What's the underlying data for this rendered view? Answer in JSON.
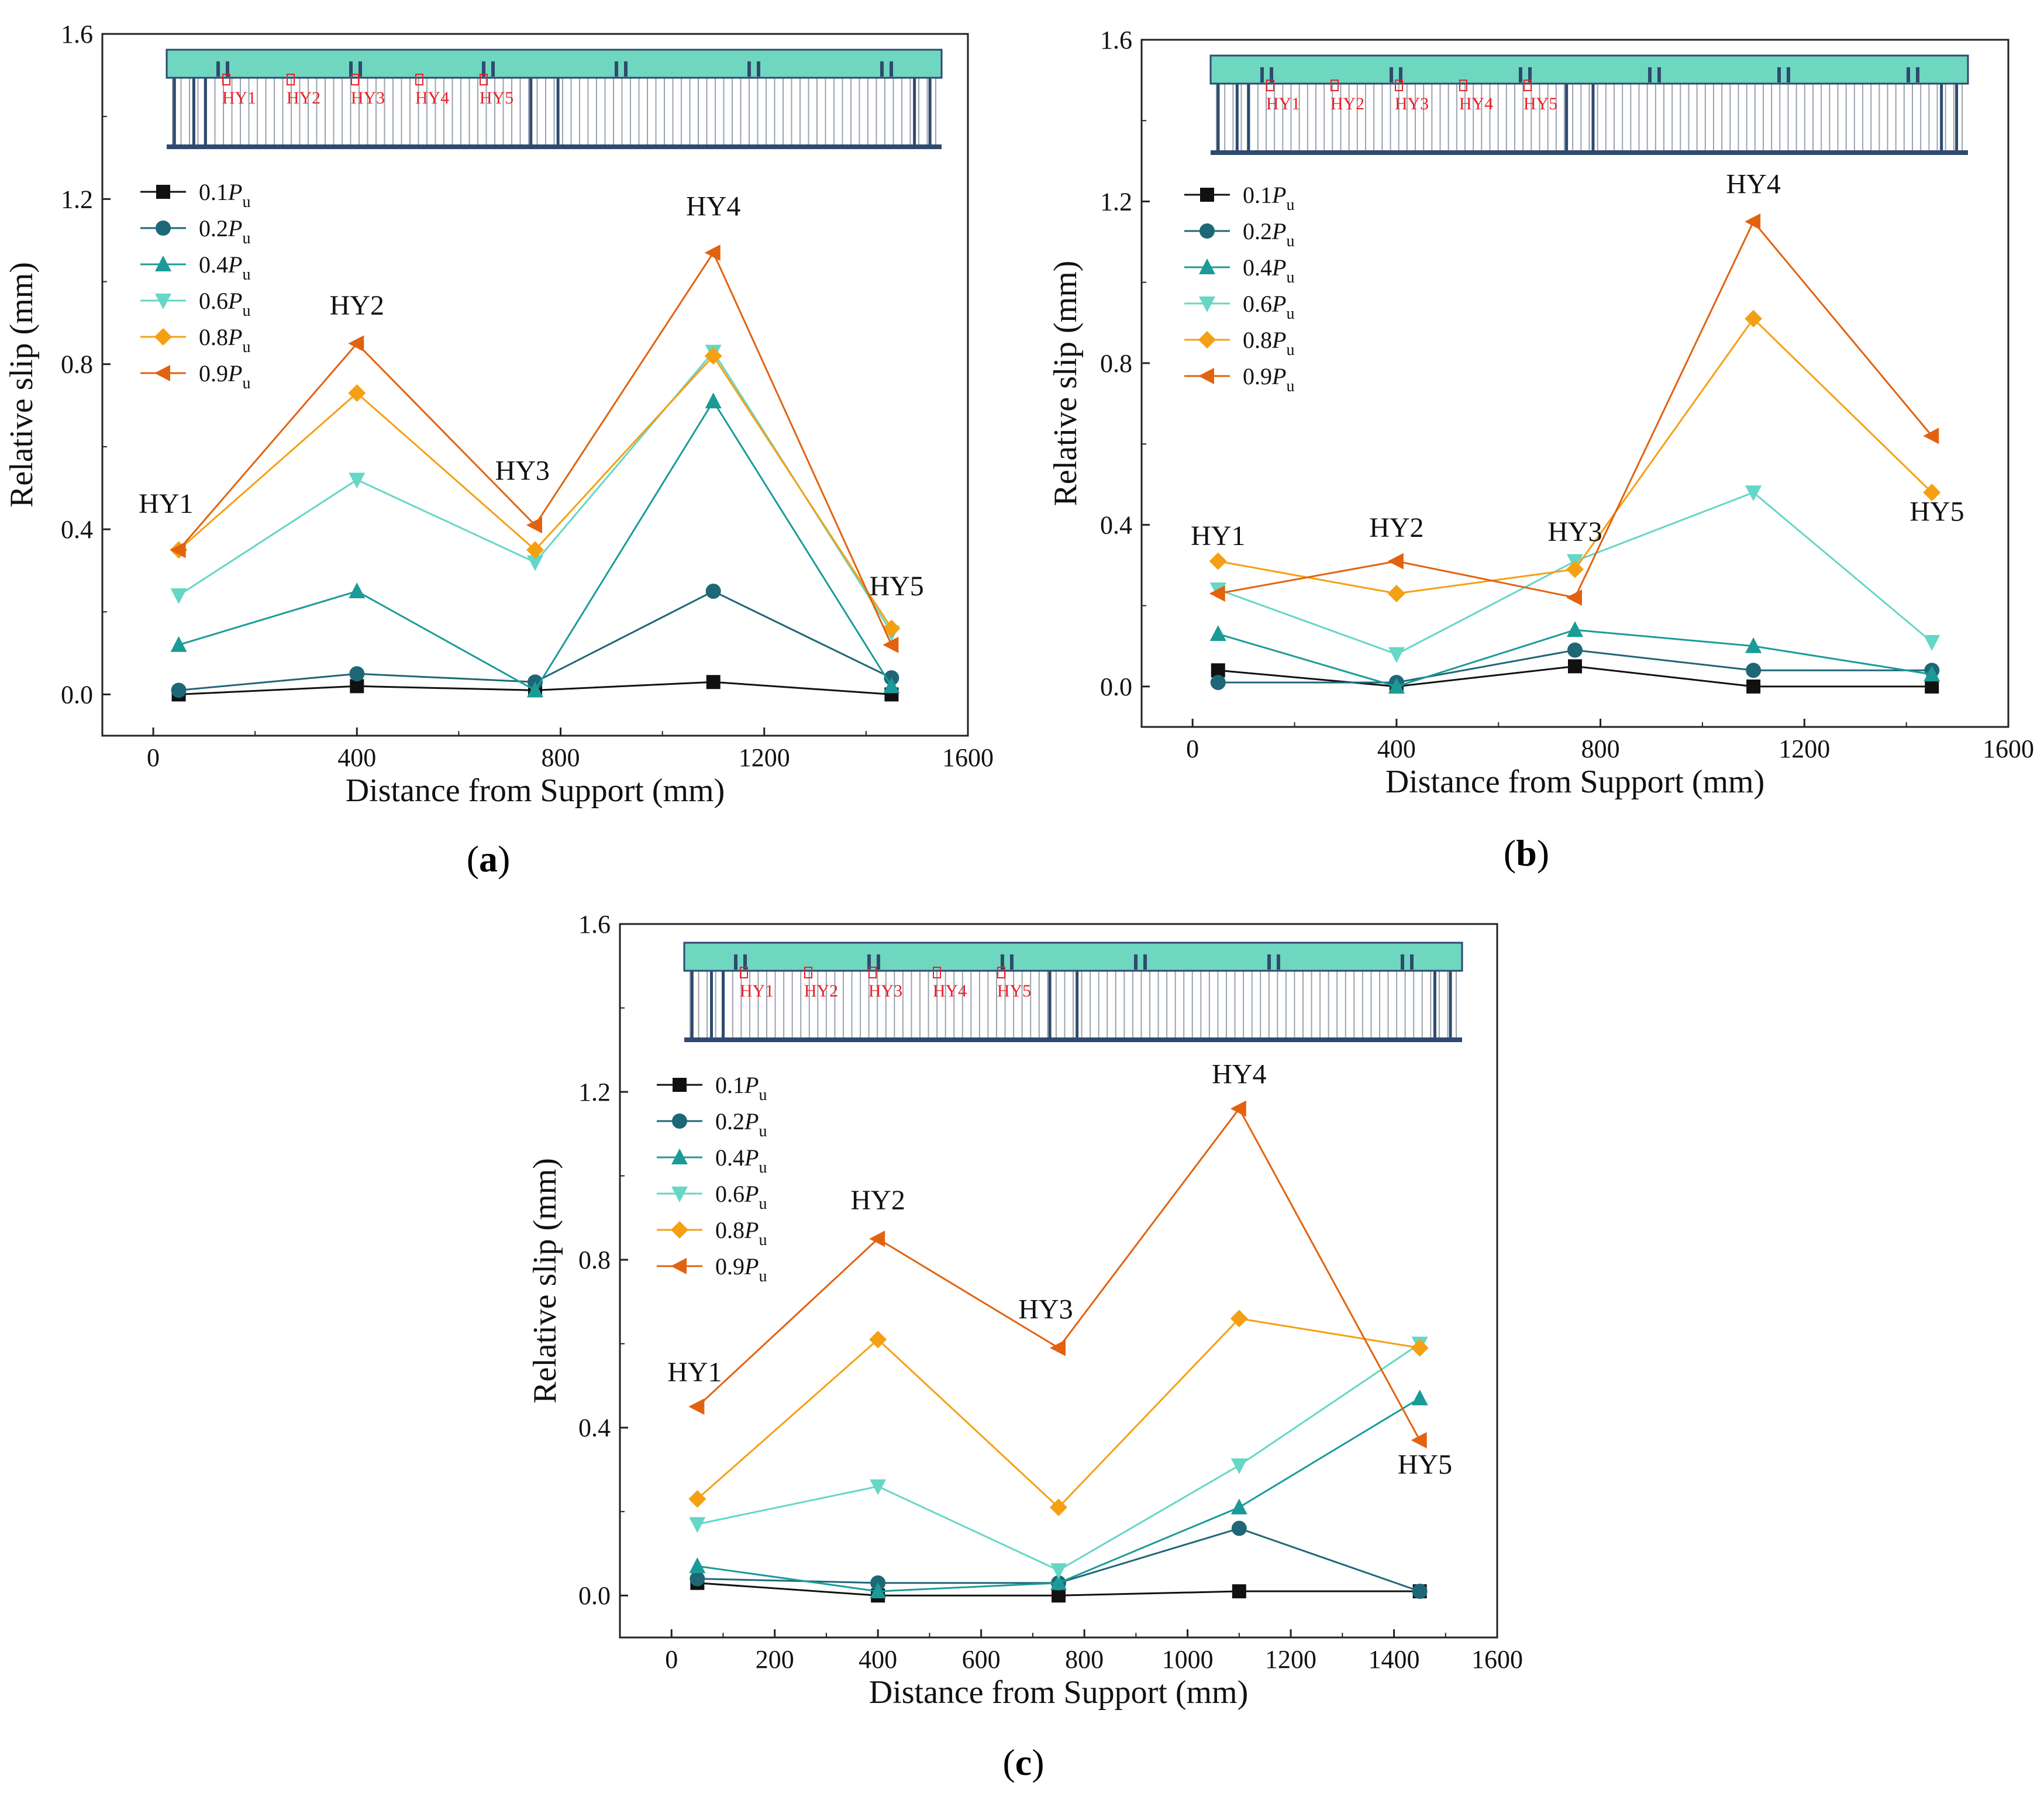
{
  "colors": {
    "axis": "#222222",
    "beam_top": "#6fd6c0",
    "beam_line": "#2e4a6e",
    "beam_marker": "#e8202a"
  },
  "panels_common": {
    "xlabel": "Distance from Support (mm)",
    "ylabel": "Relative slip (mm)",
    "beam_labels": [
      "HY1",
      "HY2",
      "HY3",
      "HY4",
      "HY5"
    ]
  },
  "series_styles": [
    {
      "name": "0.1Pu",
      "legend_base": "0.1",
      "legend_p": "P",
      "legend_sub": "u",
      "color": "#111111",
      "marker": "square"
    },
    {
      "name": "0.2Pu",
      "legend_base": "0.2",
      "legend_p": "P",
      "legend_sub": "u",
      "color": "#1e6777",
      "marker": "circle"
    },
    {
      "name": "0.4Pu",
      "legend_base": "0.4",
      "legend_p": "P",
      "legend_sub": "u",
      "color": "#1a9b98",
      "marker": "triangle-up"
    },
    {
      "name": "0.6Pu",
      "legend_base": "0.6",
      "legend_p": "P",
      "legend_sub": "u",
      "color": "#66d6c6",
      "marker": "triangle-down"
    },
    {
      "name": "0.8Pu",
      "legend_base": "0.8",
      "legend_p": "P",
      "legend_sub": "u",
      "color": "#f5a013",
      "marker": "diamond"
    },
    {
      "name": "0.9Pu",
      "legend_base": "0.9",
      "legend_p": "P",
      "legend_sub": "u",
      "color": "#e2620f",
      "marker": "triangle-left"
    }
  ],
  "chart_data": [
    {
      "type": "line",
      "caption_open": "(",
      "caption_letter": "a",
      "caption_close": ")",
      "xlabel": "Distance from Support (mm)",
      "ylabel": "Relative slip (mm)",
      "xlim": [
        -100,
        1600
      ],
      "ylim": [
        -0.1,
        1.6
      ],
      "xticks": [
        0,
        400,
        800,
        1200,
        1600
      ],
      "yticks": [
        0.0,
        0.4,
        0.8,
        1.2,
        1.6
      ],
      "x": [
        50,
        400,
        750,
        1100,
        1450
      ],
      "series": [
        {
          "name": "0.1Pu",
          "values": [
            0.0,
            0.02,
            0.01,
            0.03,
            0.0
          ]
        },
        {
          "name": "0.2Pu",
          "values": [
            0.01,
            0.05,
            0.03,
            0.25,
            0.04
          ]
        },
        {
          "name": "0.4Pu",
          "values": [
            0.12,
            0.25,
            0.01,
            0.71,
            0.02
          ]
        },
        {
          "name": "0.6Pu",
          "values": [
            0.24,
            0.52,
            0.32,
            0.83,
            0.15
          ]
        },
        {
          "name": "0.8Pu",
          "values": [
            0.35,
            0.73,
            0.35,
            0.82,
            0.16
          ]
        },
        {
          "name": "0.9Pu",
          "values": [
            0.35,
            0.85,
            0.41,
            1.07,
            0.12
          ]
        }
      ],
      "annotations": [
        {
          "text": "HY1",
          "x": 25,
          "y": 0.44
        },
        {
          "text": "HY2",
          "x": 400,
          "y": 0.92
        },
        {
          "text": "HY3",
          "x": 725,
          "y": 0.52
        },
        {
          "text": "HY4",
          "x": 1100,
          "y": 1.16
        },
        {
          "text": "HY5",
          "x": 1460,
          "y": 0.24
        }
      ]
    },
    {
      "type": "line",
      "caption_open": "(",
      "caption_letter": "b",
      "caption_close": ")",
      "xlabel": "Distance from Support (mm)",
      "ylabel": "Relative slip (mm)",
      "xlim": [
        -100,
        1600
      ],
      "ylim": [
        -0.1,
        1.6
      ],
      "xticks": [
        0,
        400,
        800,
        1200,
        1600
      ],
      "yticks": [
        0.0,
        0.4,
        0.8,
        1.2,
        1.6
      ],
      "x": [
        50,
        400,
        750,
        1100,
        1450
      ],
      "series": [
        {
          "name": "0.1Pu",
          "values": [
            0.04,
            0.0,
            0.05,
            0.0,
            0.0
          ]
        },
        {
          "name": "0.2Pu",
          "values": [
            0.01,
            0.01,
            0.09,
            0.04,
            0.04
          ]
        },
        {
          "name": "0.4Pu",
          "values": [
            0.13,
            0.0,
            0.14,
            0.1,
            0.03
          ]
        },
        {
          "name": "0.6Pu",
          "values": [
            0.24,
            0.08,
            0.31,
            0.48,
            0.11
          ]
        },
        {
          "name": "0.8Pu",
          "values": [
            0.31,
            0.23,
            0.29,
            0.91,
            0.48
          ]
        },
        {
          "name": "0.9Pu",
          "values": [
            0.23,
            0.31,
            0.22,
            1.15,
            0.62
          ]
        }
      ],
      "annotations": [
        {
          "text": "HY1",
          "x": 50,
          "y": 0.35
        },
        {
          "text": "HY2",
          "x": 400,
          "y": 0.37
        },
        {
          "text": "HY3",
          "x": 750,
          "y": 0.36
        },
        {
          "text": "HY4",
          "x": 1100,
          "y": 1.22
        },
        {
          "text": "HY5",
          "x": 1460,
          "y": 0.41
        }
      ]
    },
    {
      "type": "line",
      "caption_open": "(",
      "caption_letter": "c",
      "caption_close": ")",
      "xlabel": "Distance from Support (mm)",
      "ylabel": "Relative slip (mm)",
      "xlim": [
        -100,
        1600
      ],
      "ylim": [
        -0.1,
        1.6
      ],
      "xticks": [
        0,
        200,
        400,
        600,
        800,
        1000,
        1200,
        1400,
        1600
      ],
      "yticks": [
        0.0,
        0.4,
        0.8,
        1.2,
        1.6
      ],
      "x": [
        50,
        400,
        750,
        1100,
        1450
      ],
      "series": [
        {
          "name": "0.1Pu",
          "values": [
            0.03,
            0.0,
            0.0,
            0.01,
            0.01
          ]
        },
        {
          "name": "0.2Pu",
          "values": [
            0.04,
            0.03,
            0.03,
            0.16,
            0.01
          ]
        },
        {
          "name": "0.4Pu",
          "values": [
            0.07,
            0.01,
            0.03,
            0.21,
            0.47
          ]
        },
        {
          "name": "0.6Pu",
          "values": [
            0.17,
            0.26,
            0.06,
            0.31,
            0.6
          ]
        },
        {
          "name": "0.8Pu",
          "values": [
            0.23,
            0.61,
            0.21,
            0.66,
            0.59
          ]
        },
        {
          "name": "0.9Pu",
          "values": [
            0.45,
            0.85,
            0.59,
            1.16,
            0.37
          ]
        }
      ],
      "annotations": [
        {
          "text": "HY1",
          "x": 45,
          "y": 0.51
        },
        {
          "text": "HY2",
          "x": 400,
          "y": 0.92
        },
        {
          "text": "HY3",
          "x": 725,
          "y": 0.66
        },
        {
          "text": "HY4",
          "x": 1100,
          "y": 1.22
        },
        {
          "text": "HY5",
          "x": 1460,
          "y": 0.29
        }
      ]
    }
  ]
}
